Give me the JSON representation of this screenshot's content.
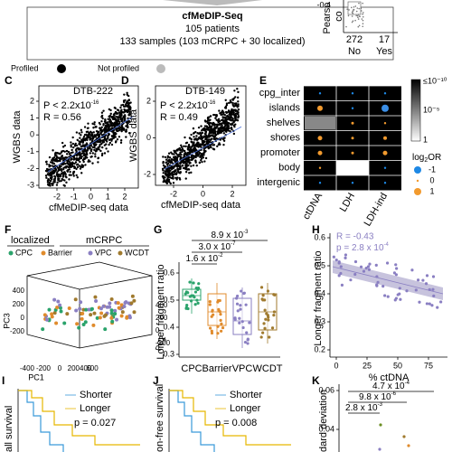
{
  "header": {
    "title": "cfMeDIP-Seq",
    "patients": "105 patients",
    "samples": "133 samples (103 mCRPC + 30 localized)"
  },
  "legend": [
    "Profiled",
    "Not profiled"
  ],
  "panel_b": {
    "axis_label": "Pearso",
    "axis_label_2": "co",
    "tick": "-0.4",
    "counts": [
      "272",
      "17"
    ],
    "groups": [
      "No",
      "Yes"
    ]
  },
  "panel_c": {
    "label": "C",
    "title": "DTB-222",
    "p": "P < 2.2x10",
    "p_exp": "-16",
    "r": "R = 0.56",
    "ylabel": "WGBS data",
    "xlabel": "cfMeDIP-seq data",
    "yticks": [
      "2",
      "1",
      "0",
      "-1",
      "-2",
      "-3"
    ],
    "xticks": [
      "-2",
      "-1",
      "0",
      "1",
      "2"
    ]
  },
  "panel_d": {
    "label": "D",
    "title": "DTB-149",
    "p": "P < 2.2x10",
    "p_exp": "-16",
    "r": "R = 0.49",
    "ylabel": "WGBS data",
    "xlabel": "cfMeDIP-seq data",
    "yticks": [
      "2",
      "0",
      "-2"
    ],
    "xticks": [
      "-2",
      "0",
      "2"
    ]
  },
  "panel_e": {
    "label": "E",
    "rows": [
      "cpg_inter",
      "islands",
      "shelves",
      "shores",
      "promoter",
      "body",
      "intergenic"
    ],
    "columns": [
      "ctDNA",
      "LDH",
      "LDH-ind"
    ],
    "colorbar": [
      "≤10⁻¹⁰",
      "10⁻⁵",
      "1"
    ],
    "size_title": "log",
    "size_title_sub": "2",
    "size_title_rest": "OR",
    "size_levels": [
      "-1",
      "0",
      "1"
    ]
  },
  "panel_f": {
    "label": "F",
    "groups": [
      "localized",
      "mCRPC"
    ],
    "legend": [
      "CPC",
      "Barrier",
      "VPC",
      "WCDT"
    ],
    "axes": [
      "PC1",
      "PC2",
      "PC3"
    ],
    "pc1_ticks": [
      "-400",
      "-200",
      "0",
      "200400",
      "600"
    ],
    "pc2_ticks": [
      "400",
      "200",
      "0",
      "-200"
    ],
    "pc3_ticks": [
      "400",
      "200",
      "0",
      "-200"
    ]
  },
  "panel_g": {
    "label": "G",
    "pvalues": [
      {
        "base": "8.9 x 10",
        "exp": "-3"
      },
      {
        "base": "3.0 x 10",
        "exp": "-7"
      },
      {
        "base": "1.6 x 10",
        "exp": "-2"
      }
    ],
    "ylabel": "Longer fragment ratio",
    "yticks": [
      "0.6",
      "0.5",
      "0.4",
      "0.3"
    ],
    "categories": [
      "CPC",
      "Barrier",
      "VPC",
      "WCDT"
    ]
  },
  "panel_h": {
    "label": "H",
    "r": "R = -0.43",
    "p": "p = 2.8 x 10",
    "p_exp": "-4",
    "ylabel": "Longer fragment ratio",
    "xlabel": "% ctDNA",
    "yticks": [
      "0.6",
      "0.5",
      "0.4",
      "0.3",
      "0.2"
    ],
    "xticks": [
      "0",
      "25",
      "50",
      "75"
    ]
  },
  "panel_i": {
    "label": "I",
    "legend": [
      "Shorter",
      "Longer"
    ],
    "p": "p = 0.027",
    "ylabel": "all survival"
  },
  "panel_j": {
    "label": "J",
    "legend": [
      "Shorter",
      "Longer"
    ],
    "p": "p = 0.008",
    "ylabel": "on-free survival"
  },
  "panel_k": {
    "label": "K",
    "pvalues": [
      {
        "base": "4.7 x 10",
        "exp": "-4"
      },
      {
        "base": "9.8 x 10",
        "exp": "-6"
      },
      {
        "base": "2.8 x 10",
        "exp": "-3"
      }
    ],
    "ylabel": "dard deviation",
    "yticks": [
      "0.06",
      "0.04"
    ]
  }
}
